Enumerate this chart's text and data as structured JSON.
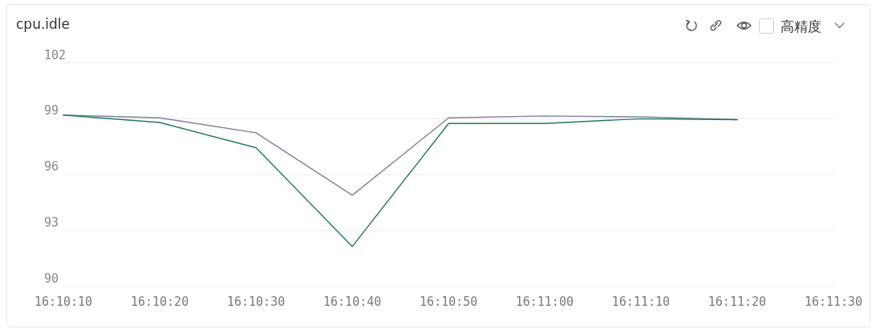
{
  "chart_data": {
    "type": "line",
    "title": "cpu.idle",
    "annotations": [
      "高精度"
    ],
    "x": [
      16.16944,
      16.17222,
      16.175,
      16.17778,
      16.18056,
      16.18333,
      16.18611,
      16.18889
    ],
    "series": [
      {
        "color": "#7f81a3",
        "values": [
          99.2,
          99.05,
          98.25,
          94.9,
          99.05,
          99.15,
          99.1,
          98.95
        ]
      },
      {
        "color": "#1f7a5e",
        "values": [
          99.2,
          98.8,
          97.45,
          92.15,
          98.75,
          98.75,
          99.0,
          98.95
        ]
      }
    ],
    "xlim": [
      16.16944,
      16.19167
    ],
    "xticks": [
      {
        "value": 16.16944,
        "label": "16:10:10"
      },
      {
        "value": 16.17222,
        "label": "16:10:20"
      },
      {
        "value": 16.175,
        "label": "16:10:30"
      },
      {
        "value": 16.17778,
        "label": "16:10:40"
      },
      {
        "value": 16.18056,
        "label": "16:10:50"
      },
      {
        "value": 16.18333,
        "label": "16:11:00"
      },
      {
        "value": 16.18611,
        "label": "16:11:10"
      },
      {
        "value": 16.18889,
        "label": "16:11:20"
      },
      {
        "value": 16.19167,
        "label": "16:11:30"
      }
    ],
    "ylim": [
      90,
      102
    ],
    "yticks": [
      90,
      93,
      96,
      99,
      102
    ],
    "grid": "y",
    "line_style": "solid"
  }
}
